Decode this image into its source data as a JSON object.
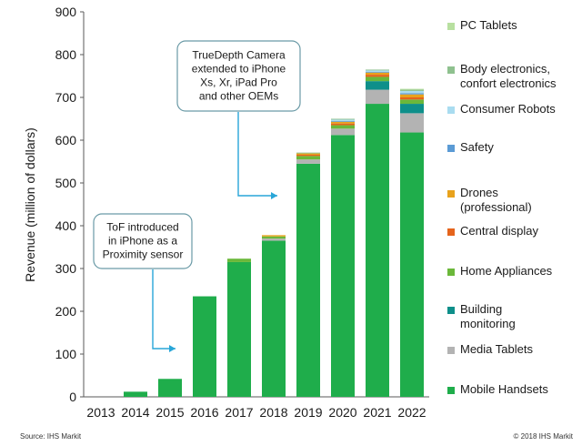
{
  "chart_data": {
    "type": "bar",
    "stacked": true,
    "title": "",
    "xlabel": "",
    "ylabel": "Revenue (million of dollars)",
    "ylim": [
      0,
      900
    ],
    "yticks": [
      0,
      100,
      200,
      300,
      400,
      500,
      600,
      700,
      800,
      900
    ],
    "grid": false,
    "legend_position": "right",
    "categories": [
      "2013",
      "2014",
      "2015",
      "2016",
      "2017",
      "2018",
      "2019",
      "2020",
      "2021",
      "2022"
    ],
    "series": [
      {
        "name": "Mobile Handsets",
        "color": "#1fad4b",
        "values": [
          0,
          12,
          42,
          235,
          315,
          365,
          545,
          612,
          685,
          618
        ]
      },
      {
        "name": "Media Tablets",
        "color": "#b3b3b3",
        "values": [
          0,
          0,
          0,
          0,
          0,
          5,
          10,
          15,
          33,
          45
        ]
      },
      {
        "name": "Building monitoring",
        "color": "#0e8f8a",
        "values": [
          0,
          0,
          0,
          0,
          0,
          0,
          0,
          0,
          20,
          22
        ]
      },
      {
        "name": "Home Appliances",
        "color": "#6bb83a",
        "values": [
          0,
          0,
          0,
          0,
          8,
          5,
          8,
          8,
          10,
          10
        ]
      },
      {
        "name": "Central display",
        "color": "#e5641c",
        "values": [
          0,
          0,
          0,
          0,
          0,
          0,
          3,
          4,
          5,
          5
        ]
      },
      {
        "name": "Drones (professional)",
        "color": "#e8a21c",
        "values": [
          0,
          0,
          0,
          0,
          0,
          3,
          3,
          4,
          5,
          7
        ]
      },
      {
        "name": "Safety",
        "color": "#5b9bd5",
        "values": [
          0,
          0,
          0,
          0,
          0,
          0,
          0,
          2,
          2,
          3
        ]
      },
      {
        "name": "Consumer Robots",
        "color": "#a9dcf0",
        "values": [
          0,
          0,
          0,
          0,
          0,
          0,
          0,
          3,
          3,
          5
        ]
      },
      {
        "name": "Body electronics, confort electronics",
        "color": "#8fc18f",
        "values": [
          0,
          0,
          0,
          0,
          0,
          0,
          2,
          2,
          2,
          3
        ]
      },
      {
        "name": "PC Tablets",
        "color": "#b8e0a0",
        "values": [
          0,
          0,
          0,
          0,
          0,
          0,
          0,
          0,
          0,
          2
        ]
      }
    ],
    "legend": [
      {
        "label": "PC Tablets",
        "color": "#b8e0a0"
      },
      {
        "label": "Body electronics,\nconfort electronics",
        "color": "#8fc18f"
      },
      {
        "label": "Consumer Robots",
        "color": "#a9dcf0"
      },
      {
        "label": "Safety",
        "color": "#5b9bd5"
      },
      {
        "label": "Drones\n(professional)",
        "color": "#e8a21c"
      },
      {
        "label": "Central display",
        "color": "#e5641c"
      },
      {
        "label": "Home Appliances",
        "color": "#6bb83a"
      },
      {
        "label": "Building\nmonitoring",
        "color": "#0e8f8a"
      },
      {
        "label": "Media Tablets",
        "color": "#b3b3b3"
      },
      {
        "label": "Mobile Handsets",
        "color": "#1fad4b"
      }
    ],
    "annotations": [
      {
        "text": "TrueDepth  Camera\nextended to iPhone\nXs, Xr, iPad Pro\nand other OEMs",
        "points_to_year": "2018",
        "points_to_value": 470
      },
      {
        "text": "ToF introduced\nin iPhone as a\nProximity sensor",
        "points_to_year": "2015",
        "points_to_value": 115
      }
    ]
  },
  "footer": {
    "source": "Source: IHS Markit",
    "copyright": "© 2018 IHS Markit"
  }
}
